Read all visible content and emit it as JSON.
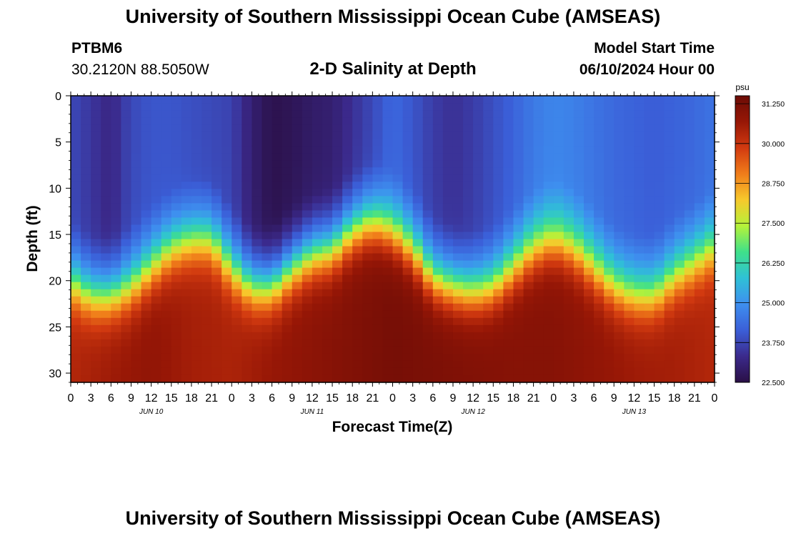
{
  "header": {
    "title": "University of Southern Mississippi Ocean Cube (AMSEAS)",
    "station": "PTBM6",
    "coords": "30.2120N  88.5050W",
    "chart_title": "2-D Salinity at Depth",
    "model_start_label": "Model Start Time",
    "model_start_value": "06/10/2024 Hour 00"
  },
  "footer": {
    "title": "University of Southern Mississippi Ocean Cube (AMSEAS)"
  },
  "chart_data": {
    "type": "heatmap",
    "title": "2-D Salinity at Depth",
    "xlabel": "Forecast Time(Z)",
    "ylabel": "Depth (ft)",
    "x_hours": [
      0,
      96
    ],
    "xlim": [
      0,
      96
    ],
    "ylim": [
      0,
      31
    ],
    "x_tick_labels": [
      "0",
      "3",
      "6",
      "9",
      "12",
      "15",
      "18",
      "21",
      "0",
      "3",
      "6",
      "9",
      "12",
      "15",
      "18",
      "21",
      "0",
      "3",
      "6",
      "9",
      "12",
      "15",
      "18",
      "21",
      "0",
      "3",
      "6",
      "9",
      "12",
      "15",
      "18",
      "21",
      "0"
    ],
    "day_labels": [
      "JUN 10",
      "JUN 11",
      "JUN 12",
      "JUN 13"
    ],
    "y_ticks": [
      0,
      5,
      10,
      15,
      20,
      25,
      30
    ],
    "colorbar": {
      "unit": "psu",
      "min": 22.5,
      "max": 31.5,
      "ticks": [
        "22.500",
        "23.750",
        "25.000",
        "26.250",
        "27.500",
        "28.750",
        "30.000",
        "31.250"
      ],
      "tick_values": [
        22.5,
        23.75,
        25.0,
        26.25,
        27.5,
        28.75,
        30.0,
        31.25
      ]
    },
    "colormap": [
      "#2a0f45",
      "#3b2a8c",
      "#3b5fd8",
      "#3e8fef",
      "#2fc1d6",
      "#3fe08a",
      "#b4f23a",
      "#f7c92c",
      "#f07d1a",
      "#d23a10",
      "#971706",
      "#6c0c06"
    ],
    "halocline_depth_ft": {
      "hours": [
        0,
        3,
        6,
        9,
        12,
        15,
        18,
        21,
        24,
        27,
        30,
        33,
        36,
        39,
        42,
        45,
        48,
        51,
        54,
        57,
        60,
        63,
        66,
        69,
        72,
        75,
        78,
        81,
        84,
        87,
        90,
        93,
        96
      ],
      "values": [
        20.5,
        22,
        22,
        21,
        19,
        17,
        16,
        16,
        19,
        21,
        21,
        19,
        17.5,
        17,
        15,
        14,
        15,
        17,
        20,
        21,
        21.5,
        21,
        19,
        17,
        16,
        17,
        19,
        21,
        22,
        22,
        20,
        18.5,
        17
      ]
    },
    "surface_salinity_psu": {
      "hours": [
        0,
        3,
        6,
        9,
        12,
        15,
        18,
        21,
        24,
        27,
        30,
        33,
        36,
        39,
        42,
        45,
        48,
        51,
        54,
        57,
        60,
        63,
        66,
        69,
        72,
        75,
        78,
        81,
        84,
        87,
        90,
        93,
        96
      ],
      "values": [
        23.8,
        23.5,
        23.2,
        23.8,
        24.0,
        24.0,
        23.9,
        23.8,
        23.7,
        23.0,
        22.6,
        22.7,
        22.9,
        23.0,
        23.4,
        23.8,
        24.3,
        24.0,
        23.6,
        23.4,
        23.6,
        23.9,
        24.2,
        24.6,
        24.8,
        24.7,
        24.5,
        24.3,
        24.2,
        24.1,
        24.2,
        24.3,
        24.5
      ]
    },
    "deep_salinity_psu": {
      "hours": [
        0,
        6,
        12,
        18,
        24,
        30,
        36,
        42,
        48,
        54,
        60,
        66,
        72,
        78,
        84,
        90,
        96
      ],
      "values": [
        30.3,
        30.6,
        30.8,
        30.5,
        30.4,
        30.7,
        30.9,
        31.1,
        31.3,
        31.2,
        31.1,
        31.0,
        31.0,
        30.8,
        30.6,
        30.5,
        30.3
      ]
    }
  }
}
